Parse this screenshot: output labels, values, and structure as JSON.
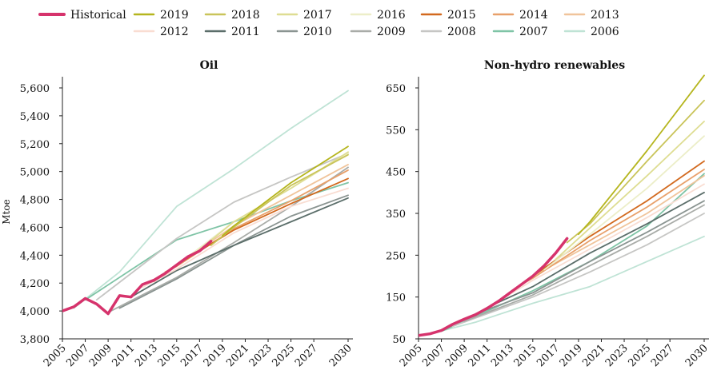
{
  "legend": [
    {
      "label": "Historical",
      "color": "#d6336c"
    },
    {
      "label": "2019",
      "color": "#b5b51d"
    },
    {
      "label": "2018",
      "color": "#c9c45a"
    },
    {
      "label": "2017",
      "color": "#dedd92"
    },
    {
      "label": "2016",
      "color": "#eceec8"
    },
    {
      "label": "2015",
      "color": "#d2691e"
    },
    {
      "label": "2014",
      "color": "#e8a06a"
    },
    {
      "label": "2013",
      "color": "#f0c49b"
    },
    {
      "label": "2012",
      "color": "#f9ddd2"
    },
    {
      "label": "2011",
      "color": "#5b6e6a"
    },
    {
      "label": "2010",
      "color": "#8a9491"
    },
    {
      "label": "2009",
      "color": "#a9aca8"
    },
    {
      "label": "2008",
      "color": "#c6c6c4"
    },
    {
      "label": "2007",
      "color": "#7fc4a6"
    },
    {
      "label": "2006",
      "color": "#bfe3d5"
    }
  ],
  "chart_data": [
    {
      "type": "line",
      "title": "Oil",
      "ylabel": "Mtoe",
      "xlabel": "",
      "xlim": [
        2005,
        2030
      ],
      "ylim": [
        3800,
        5700
      ],
      "xticks": [
        "2005",
        "2007",
        "2009",
        "2011",
        "2013",
        "2015",
        "2017",
        "2019",
        "2021",
        "2023",
        "2025",
        "2027",
        "2030"
      ],
      "xtick_values": [
        2005,
        2007,
        2009,
        2011,
        2013,
        2015,
        2017,
        2019,
        2021,
        2023,
        2025,
        2027,
        2030
      ],
      "yticks": [
        "3,800",
        "4,000",
        "4,200",
        "4,400",
        "4,600",
        "4,800",
        "5,000",
        "5,200",
        "5,400",
        "5,600"
      ],
      "ytick_values": [
        3800,
        4000,
        4200,
        4400,
        4600,
        4800,
        5000,
        5200,
        5400,
        5600
      ],
      "series": [
        {
          "name": "2006",
          "points": [
            [
              2006,
              4020
            ],
            [
              2010,
              4280
            ],
            [
              2015,
              4750
            ],
            [
              2020,
              5020
            ],
            [
              2025,
              5310
            ],
            [
              2030,
              5580
            ]
          ]
        },
        {
          "name": "2007",
          "points": [
            [
              2007,
              4080
            ],
            [
              2015,
              4510
            ],
            [
              2020,
              4640
            ],
            [
              2025,
              4790
            ],
            [
              2030,
              4920
            ]
          ]
        },
        {
          "name": "2008",
          "points": [
            [
              2008,
              4080
            ],
            [
              2015,
              4520
            ],
            [
              2020,
              4780
            ],
            [
              2025,
              4960
            ],
            [
              2030,
              5130
            ]
          ]
        },
        {
          "name": "2009",
          "points": [
            [
              2009,
              3990
            ],
            [
              2015,
              4240
            ],
            [
              2020,
              4490
            ],
            [
              2025,
              4750
            ],
            [
              2030,
              5030
            ]
          ]
        },
        {
          "name": "2010",
          "points": [
            [
              2010,
              4020
            ],
            [
              2015,
              4230
            ],
            [
              2020,
              4470
            ],
            [
              2025,
              4680
            ],
            [
              2030,
              4830
            ]
          ]
        },
        {
          "name": "2011",
          "points": [
            [
              2011,
              4100
            ],
            [
              2015,
              4290
            ],
            [
              2020,
              4470
            ],
            [
              2025,
              4640
            ],
            [
              2030,
              4810
            ]
          ]
        },
        {
          "name": "2012",
          "points": [
            [
              2012,
              4170
            ],
            [
              2015,
              4300
            ],
            [
              2020,
              4560
            ],
            [
              2025,
              4750
            ],
            [
              2030,
              4880
            ]
          ]
        },
        {
          "name": "2013",
          "points": [
            [
              2013,
              4210
            ],
            [
              2015,
              4330
            ],
            [
              2020,
              4610
            ],
            [
              2025,
              4830
            ],
            [
              2030,
              5050
            ]
          ]
        },
        {
          "name": "2014",
          "points": [
            [
              2014,
              4280
            ],
            [
              2015,
              4320
            ],
            [
              2020,
              4590
            ],
            [
              2025,
              4790
            ],
            [
              2030,
              5010
            ]
          ]
        },
        {
          "name": "2015",
          "points": [
            [
              2015,
              4330
            ],
            [
              2020,
              4580
            ],
            [
              2025,
              4770
            ],
            [
              2030,
              4950
            ]
          ]
        },
        {
          "name": "2016",
          "points": [
            [
              2016,
              4390
            ],
            [
              2020,
              4640
            ],
            [
              2025,
              4880
            ],
            [
              2030,
              5130
            ]
          ]
        },
        {
          "name": "2017",
          "points": [
            [
              2017,
              4440
            ],
            [
              2020,
              4640
            ],
            [
              2025,
              4880
            ],
            [
              2030,
              5140
            ]
          ]
        },
        {
          "name": "2018",
          "points": [
            [
              2018,
              4470
            ],
            [
              2020,
              4600
            ],
            [
              2025,
              4900
            ],
            [
              2030,
              5120
            ]
          ]
        },
        {
          "name": "2019",
          "points": [
            [
              2019,
              4540
            ],
            [
              2020,
              4610
            ],
            [
              2025,
              4920
            ],
            [
              2030,
              5180
            ]
          ]
        },
        {
          "name": "Historical",
          "points": [
            [
              2005,
              4000
            ],
            [
              2006,
              4030
            ],
            [
              2007,
              4090
            ],
            [
              2008,
              4050
            ],
            [
              2009,
              3980
            ],
            [
              2010,
              4110
            ],
            [
              2011,
              4100
            ],
            [
              2012,
              4190
            ],
            [
              2013,
              4220
            ],
            [
              2014,
              4270
            ],
            [
              2015,
              4330
            ],
            [
              2016,
              4390
            ],
            [
              2017,
              4430
            ],
            [
              2018,
              4500
            ]
          ]
        }
      ]
    },
    {
      "type": "line",
      "title": "Non-hydro renewables",
      "ylabel": "",
      "xlabel": "",
      "xlim": [
        2005,
        2030
      ],
      "ylim": [
        50,
        700
      ],
      "xticks": [
        "2005",
        "2007",
        "2009",
        "2011",
        "2013",
        "2015",
        "2017",
        "2019",
        "2021",
        "2023",
        "2025",
        "2027",
        "2030"
      ],
      "xtick_values": [
        2005,
        2007,
        2009,
        2011,
        2013,
        2015,
        2017,
        2019,
        2021,
        2023,
        2025,
        2027,
        2030
      ],
      "yticks": [
        "50",
        "150",
        "250",
        "350",
        "450",
        "550",
        "650"
      ],
      "ytick_values": [
        50,
        150,
        250,
        350,
        450,
        550,
        650
      ],
      "series": [
        {
          "name": "2006",
          "points": [
            [
              2006,
              62
            ],
            [
              2010,
              90
            ],
            [
              2015,
              135
            ],
            [
              2020,
              175
            ],
            [
              2025,
              235
            ],
            [
              2030,
              295
            ]
          ]
        },
        {
          "name": "2007",
          "points": [
            [
              2007,
              68
            ],
            [
              2015,
              165
            ],
            [
              2020,
              235
            ],
            [
              2025,
              320
            ],
            [
              2030,
              445
            ]
          ]
        },
        {
          "name": "2008",
          "points": [
            [
              2008,
              80
            ],
            [
              2015,
              150
            ],
            [
              2020,
              210
            ],
            [
              2025,
              275
            ],
            [
              2030,
              350
            ]
          ]
        },
        {
          "name": "2009",
          "points": [
            [
              2009,
              92
            ],
            [
              2015,
              155
            ],
            [
              2020,
              225
            ],
            [
              2025,
              295
            ],
            [
              2030,
              370
            ]
          ]
        },
        {
          "name": "2010",
          "points": [
            [
              2010,
              110
            ],
            [
              2015,
              160
            ],
            [
              2020,
              235
            ],
            [
              2025,
              305
            ],
            [
              2030,
              380
            ]
          ]
        },
        {
          "name": "2011",
          "points": [
            [
              2011,
              125
            ],
            [
              2015,
              175
            ],
            [
              2020,
              255
            ],
            [
              2025,
              325
            ],
            [
              2030,
              400
            ]
          ]
        },
        {
          "name": "2012",
          "points": [
            [
              2012,
              140
            ],
            [
              2015,
              190
            ],
            [
              2020,
              265
            ],
            [
              2025,
              340
            ],
            [
              2030,
              420
            ]
          ]
        },
        {
          "name": "2013",
          "points": [
            [
              2013,
              160
            ],
            [
              2015,
              200
            ],
            [
              2020,
              275
            ],
            [
              2025,
              350
            ],
            [
              2030,
              440
            ]
          ]
        },
        {
          "name": "2014",
          "points": [
            [
              2014,
              180
            ],
            [
              2015,
              195
            ],
            [
              2020,
              285
            ],
            [
              2025,
              365
            ],
            [
              2030,
              455
            ]
          ]
        },
        {
          "name": "2015",
          "points": [
            [
              2015,
              200
            ],
            [
              2020,
              295
            ],
            [
              2025,
              380
            ],
            [
              2030,
              475
            ]
          ]
        },
        {
          "name": "2016",
          "points": [
            [
              2016,
              215
            ],
            [
              2020,
              300
            ],
            [
              2025,
              410
            ],
            [
              2030,
              535
            ]
          ]
        },
        {
          "name": "2017",
          "points": [
            [
              2017,
              240
            ],
            [
              2020,
              315
            ],
            [
              2025,
              440
            ],
            [
              2030,
              570
            ]
          ]
        },
        {
          "name": "2018",
          "points": [
            [
              2018,
              280
            ],
            [
              2020,
              325
            ],
            [
              2025,
              475
            ],
            [
              2030,
              620
            ]
          ]
        },
        {
          "name": "2019",
          "points": [
            [
              2019,
              300
            ],
            [
              2020,
              330
            ],
            [
              2025,
              500
            ],
            [
              2030,
              680
            ]
          ]
        },
        {
          "name": "Historical",
          "points": [
            [
              2005,
              58
            ],
            [
              2006,
              62
            ],
            [
              2007,
              70
            ],
            [
              2008,
              85
            ],
            [
              2009,
              97
            ],
            [
              2010,
              108
            ],
            [
              2011,
              123
            ],
            [
              2012,
              140
            ],
            [
              2013,
              160
            ],
            [
              2014,
              180
            ],
            [
              2015,
              200
            ],
            [
              2016,
              225
            ],
            [
              2017,
              255
            ],
            [
              2018,
              290
            ]
          ]
        }
      ]
    }
  ]
}
